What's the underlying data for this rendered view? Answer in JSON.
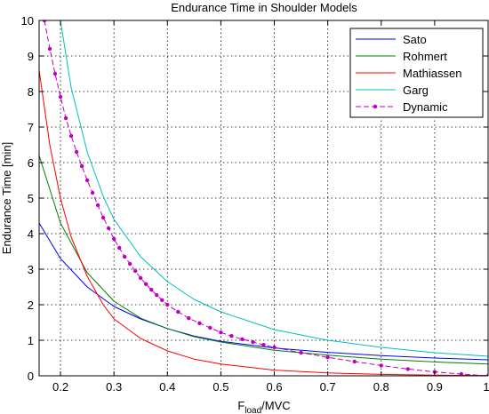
{
  "chart_data": {
    "type": "line",
    "title": "Endurance Time in Shoulder Models",
    "xlabel": {
      "main": "F",
      "subscript": "load",
      "suffix": "/MVC"
    },
    "ylabel": "Endurance Time [min]",
    "xlim": [
      0.16,
      1.0
    ],
    "ylim": [
      0,
      10
    ],
    "xticks": [
      "0.2",
      "0.3",
      "0.4",
      "0.5",
      "0.6",
      "0.7",
      "0.8",
      "0.9",
      "1"
    ],
    "yticks": [
      "0",
      "1",
      "2",
      "3",
      "4",
      "5",
      "6",
      "7",
      "8",
      "9",
      "10"
    ],
    "grid": true,
    "legend_position": "top-right",
    "series": [
      {
        "name": "Sato",
        "color": "#0000ff",
        "style": "solid",
        "x": [
          0.16,
          0.2,
          0.25,
          0.3,
          0.35,
          0.4,
          0.45,
          0.5,
          0.6,
          0.7,
          0.8,
          0.9,
          1.0
        ],
        "y": [
          4.3,
          3.3,
          2.5,
          1.95,
          1.6,
          1.33,
          1.12,
          0.97,
          0.78,
          0.66,
          0.57,
          0.5,
          0.45
        ]
      },
      {
        "name": "Rohmert",
        "color": "#008000",
        "style": "solid",
        "x": [
          0.16,
          0.2,
          0.25,
          0.3,
          0.35,
          0.4,
          0.45,
          0.5,
          0.6,
          0.7,
          0.8,
          0.9,
          1.0
        ],
        "y": [
          6.2,
          4.3,
          2.9,
          2.1,
          1.62,
          1.33,
          1.1,
          0.95,
          0.72,
          0.58,
          0.47,
          0.39,
          0.33
        ]
      },
      {
        "name": "Mathiassen",
        "color": "#ff0000",
        "style": "solid",
        "x": [
          0.16,
          0.18,
          0.2,
          0.22,
          0.25,
          0.28,
          0.3,
          0.35,
          0.4,
          0.45,
          0.5,
          0.6,
          0.7,
          0.8,
          0.9,
          1.0
        ],
        "y": [
          8.6,
          6.5,
          5.0,
          3.9,
          2.8,
          2.0,
          1.6,
          1.05,
          0.7,
          0.47,
          0.33,
          0.16,
          0.08,
          0.04,
          0.02,
          0.01
        ]
      },
      {
        "name": "Garg",
        "color": "#00bfbf",
        "style": "solid",
        "x": [
          0.2,
          0.22,
          0.25,
          0.28,
          0.3,
          0.35,
          0.4,
          0.45,
          0.5,
          0.6,
          0.7,
          0.8,
          0.9,
          1.0
        ],
        "y": [
          10.0,
          8.1,
          6.3,
          5.05,
          4.4,
          3.35,
          2.65,
          2.15,
          1.8,
          1.3,
          1.0,
          0.8,
          0.65,
          0.55
        ]
      },
      {
        "name": "Dynamic",
        "color": "#bf00bf",
        "style": "dashed-dot-markers",
        "x": [
          0.17,
          0.18,
          0.19,
          0.2,
          0.21,
          0.22,
          0.23,
          0.24,
          0.25,
          0.26,
          0.27,
          0.28,
          0.29,
          0.3,
          0.31,
          0.32,
          0.33,
          0.34,
          0.35,
          0.36,
          0.37,
          0.38,
          0.39,
          0.4,
          0.42,
          0.44,
          0.46,
          0.48,
          0.5,
          0.52,
          0.54,
          0.56,
          0.58,
          0.6,
          0.65,
          0.7,
          0.75,
          0.8,
          0.85,
          0.9,
          0.95,
          1.0
        ],
        "y": [
          10.0,
          9.2,
          8.5,
          7.85,
          7.25,
          6.75,
          6.3,
          5.9,
          5.5,
          5.15,
          4.8,
          4.45,
          4.15,
          3.85,
          3.6,
          3.35,
          3.15,
          2.95,
          2.75,
          2.58,
          2.42,
          2.27,
          2.13,
          2.0,
          1.8,
          1.62,
          1.48,
          1.35,
          1.22,
          1.12,
          1.03,
          0.95,
          0.87,
          0.8,
          0.65,
          0.52,
          0.4,
          0.29,
          0.19,
          0.11,
          0.05,
          0.0
        ]
      }
    ]
  }
}
